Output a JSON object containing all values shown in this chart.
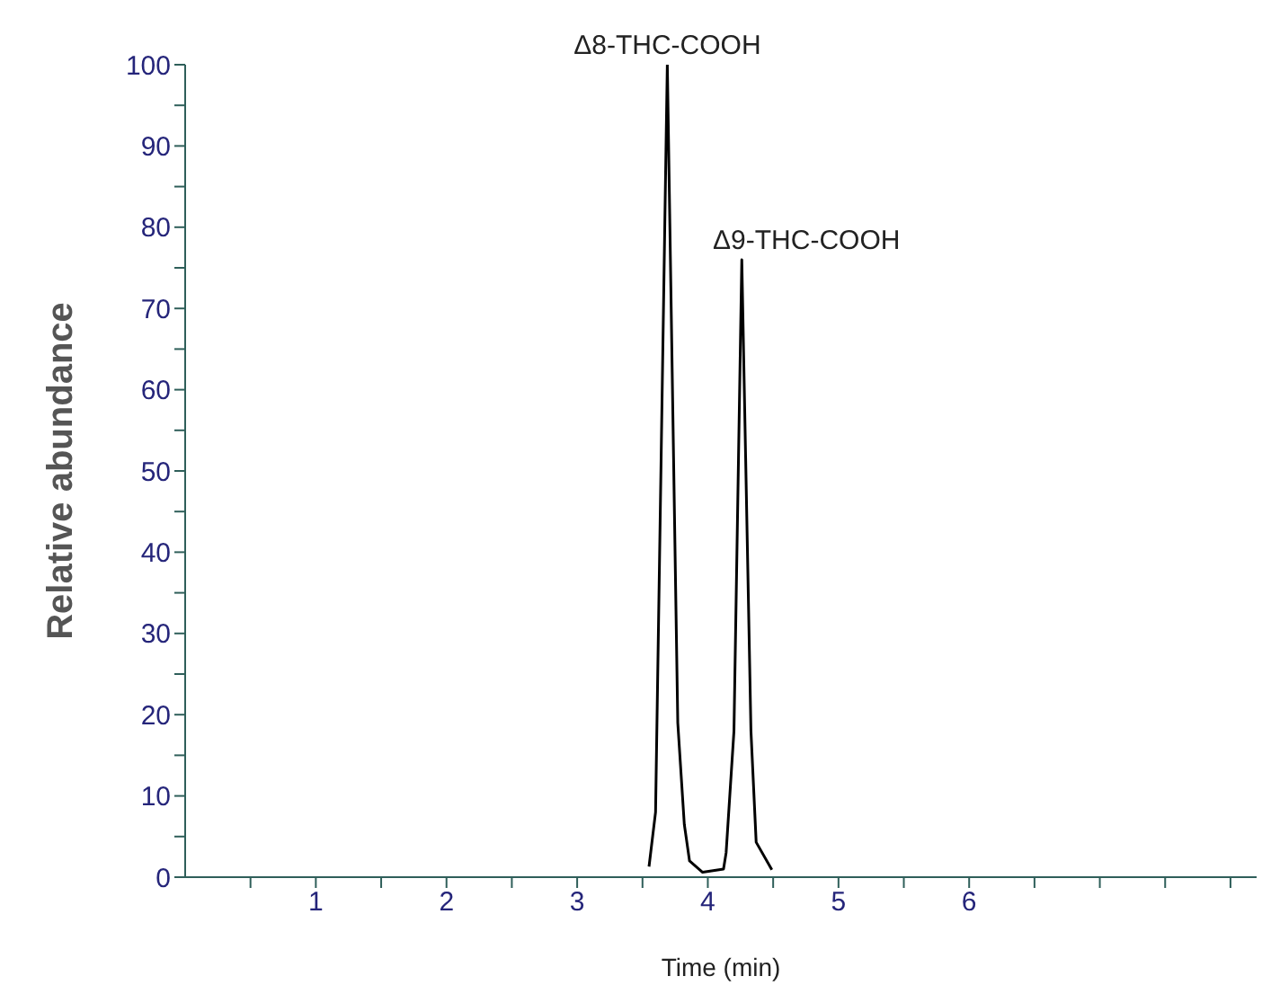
{
  "chart_data": {
    "type": "line",
    "xlabel": "Time (min)",
    "ylabel": "Relative abundance",
    "x": [
      3.55,
      3.6,
      3.69,
      3.77,
      3.82,
      3.86,
      3.96,
      4.12,
      4.14,
      4.2,
      4.26,
      4.33,
      4.37,
      4.49
    ],
    "series": [
      {
        "color": "#000000",
        "values": [
          1.3,
          8,
          100,
          19,
          6.5,
          2,
          0.6,
          1,
          3,
          18,
          76,
          18,
          4.3,
          0.9
        ]
      }
    ],
    "xlim": [
      0,
      8.2
    ],
    "xticks": [
      {
        "value": 0.5,
        "label": null
      },
      1,
      {
        "value": 1.5,
        "label": null
      },
      2,
      {
        "value": 2.5,
        "label": null
      },
      3,
      {
        "value": 3.5,
        "label": null
      },
      4,
      {
        "value": 4.5,
        "label": null
      },
      5,
      {
        "value": 5.5,
        "label": null
      },
      6,
      {
        "value": 6.5,
        "label": null
      },
      {
        "value": 7,
        "label": null
      },
      {
        "value": 7.5,
        "label": null
      },
      {
        "value": 8,
        "label": null
      }
    ],
    "ylim": [
      0,
      100
    ],
    "yticks": [
      0,
      {
        "value": 5,
        "label": null
      },
      10,
      {
        "value": 15,
        "label": null
      },
      20,
      {
        "value": 25,
        "label": null
      },
      30,
      {
        "value": 35,
        "label": null
      },
      40,
      {
        "value": 45,
        "label": null
      },
      50,
      {
        "value": 55,
        "label": null
      },
      60,
      {
        "value": 65,
        "label": null
      },
      70,
      {
        "value": 75,
        "label": null
      },
      80,
      {
        "value": 85,
        "label": null
      },
      90,
      {
        "value": 95,
        "label": null
      },
      100
    ],
    "grid": false,
    "legend": false,
    "marker": "none",
    "line_style": "solid",
    "annotations": [
      {
        "text": "Δ8-THC-COOH",
        "x": 3.69,
        "y": 100
      },
      {
        "text": "Δ9-THC-COOH",
        "x": 4.26,
        "y": 76
      }
    ]
  }
}
